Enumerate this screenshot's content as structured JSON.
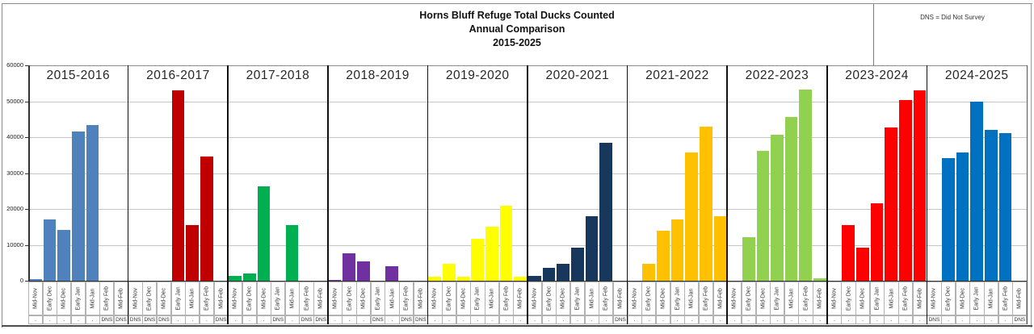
{
  "title": {
    "line1": "Horns Bluff Refuge Total Ducks Counted",
    "line2": "Annual Comparison",
    "line3": "2015-2025"
  },
  "note": "DNS = Did Not Survey",
  "chart_data": {
    "type": "bar",
    "title": "Horns Bluff Refuge Total Ducks Counted Annual Comparison 2015-2025",
    "xlabel": "",
    "ylabel": "",
    "ylim": [
      0,
      60000
    ],
    "ytick_step": 10000,
    "ytick_labels": [
      "0",
      "10000",
      "20000",
      "30000",
      "40000",
      "50000",
      "60000"
    ],
    "grid": true,
    "legend_position": "none",
    "dns_marker": "DNS",
    "surveyed_marker": ".",
    "periods": [
      "Mid-Nov",
      "Early Dec",
      "Mid-Dec",
      "Early Jan",
      "Mid-Jan",
      "Early Feb",
      "Mid-Feb"
    ],
    "groups": [
      {
        "label": "2015-2016",
        "color": "#4F81BD",
        "values": [
          500,
          17000,
          14200,
          41600,
          43300,
          null,
          null
        ],
        "status": [
          ".",
          ".",
          ".",
          ".",
          ".",
          "DNS",
          "DNS"
        ]
      },
      {
        "label": "2016-2017",
        "color": "#C00000",
        "values": [
          null,
          null,
          null,
          53100,
          15400,
          34700,
          null
        ],
        "status": [
          "DNS",
          "DNS",
          "DNS",
          ".",
          ".",
          ".",
          "DNS"
        ]
      },
      {
        "label": "2017-2018",
        "color": "#00B050",
        "values": [
          1400,
          2100,
          26400,
          null,
          15600,
          null,
          null
        ],
        "status": [
          ".",
          ".",
          ".",
          "DNS",
          ".",
          "DNS",
          "DNS"
        ]
      },
      {
        "label": "2018-2019",
        "color": "#7030A0",
        "values": [
          300,
          7700,
          5500,
          null,
          4000,
          null,
          null
        ],
        "status": [
          ".",
          ".",
          ".",
          "DNS",
          ".",
          "DNS",
          "DNS"
        ]
      },
      {
        "label": "2019-2020",
        "color": "#FFFF00",
        "values": [
          1200,
          4800,
          1100,
          11700,
          15000,
          20900,
          1200
        ],
        "status": [
          ".",
          ".",
          ".",
          ".",
          ".",
          ".",
          "."
        ]
      },
      {
        "label": "2020-2021",
        "color": "#17375D",
        "values": [
          1300,
          3600,
          4700,
          9300,
          17900,
          38400,
          null
        ],
        "status": [
          ".",
          ".",
          ".",
          ".",
          ".",
          ".",
          "DNS"
        ]
      },
      {
        "label": "2021-2022",
        "color": "#FFC000",
        "values": [
          0,
          4700,
          14000,
          17100,
          35800,
          42900,
          17900
        ],
        "status": [
          ".",
          ".",
          ".",
          ".",
          ".",
          ".",
          "."
        ]
      },
      {
        "label": "2022-2023",
        "color": "#92D050",
        "values": [
          0,
          12100,
          36100,
          40600,
          45600,
          53200,
          700
        ],
        "status": [
          ".",
          ".",
          ".",
          ".",
          ".",
          ".",
          "."
        ]
      },
      {
        "label": "2023-2024",
        "color": "#FF0000",
        "values": [
          0,
          15400,
          9300,
          21500,
          42700,
          50400,
          53000
        ],
        "status": [
          ".",
          ".",
          ".",
          ".",
          ".",
          ".",
          "."
        ]
      },
      {
        "label": "2024-2025",
        "color": "#0070C0",
        "values": [
          null,
          34100,
          35800,
          49800,
          42000,
          41200,
          null
        ],
        "status": [
          "DNS",
          ".",
          ".",
          ".",
          ".",
          ".",
          "DNS"
        ]
      }
    ]
  }
}
